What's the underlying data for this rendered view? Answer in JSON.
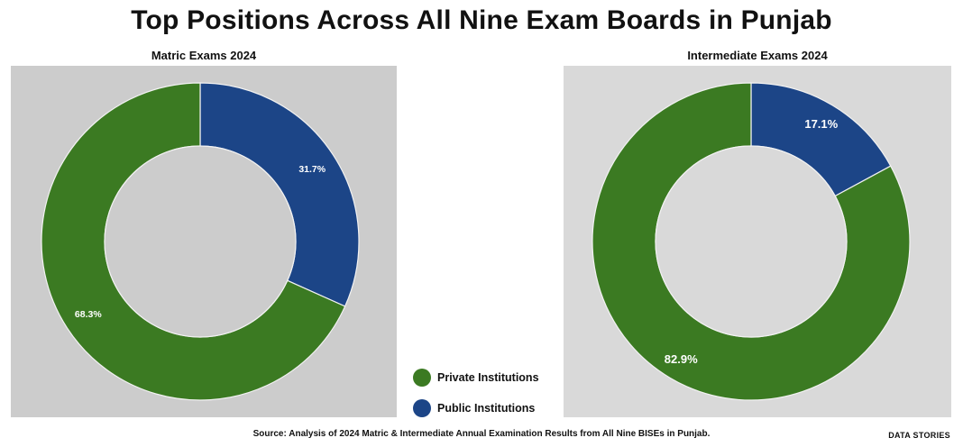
{
  "title": "Top Positions Across All Nine Exam Boards in Punjab",
  "colors": {
    "private": "#3b7a22",
    "public": "#1c4587"
  },
  "legend": [
    {
      "label": "Private Institutions",
      "color": "#3b7a22"
    },
    {
      "label": "Public Institutions",
      "color": "#1c4587"
    }
  ],
  "source": "Source: Analysis of 2024 Matric & Intermediate Annual Examination Results from All Nine BISEs in Punjab.",
  "brand": "DATA STORIES",
  "chart_data": [
    {
      "type": "pie",
      "title": "Matric Exams 2024",
      "background": "#cccccc",
      "categories": [
        "Public Institutions",
        "Private Institutions"
      ],
      "values": [
        31.7,
        68.3
      ],
      "labels": [
        "31.7%",
        "68.3%"
      ]
    },
    {
      "type": "pie",
      "title": "Intermediate Exams 2024",
      "background": "#d9d9d9",
      "categories": [
        "Public Institutions",
        "Private Institutions"
      ],
      "values": [
        17.1,
        82.9
      ],
      "labels": [
        "17.1%",
        "82.9%"
      ]
    }
  ]
}
